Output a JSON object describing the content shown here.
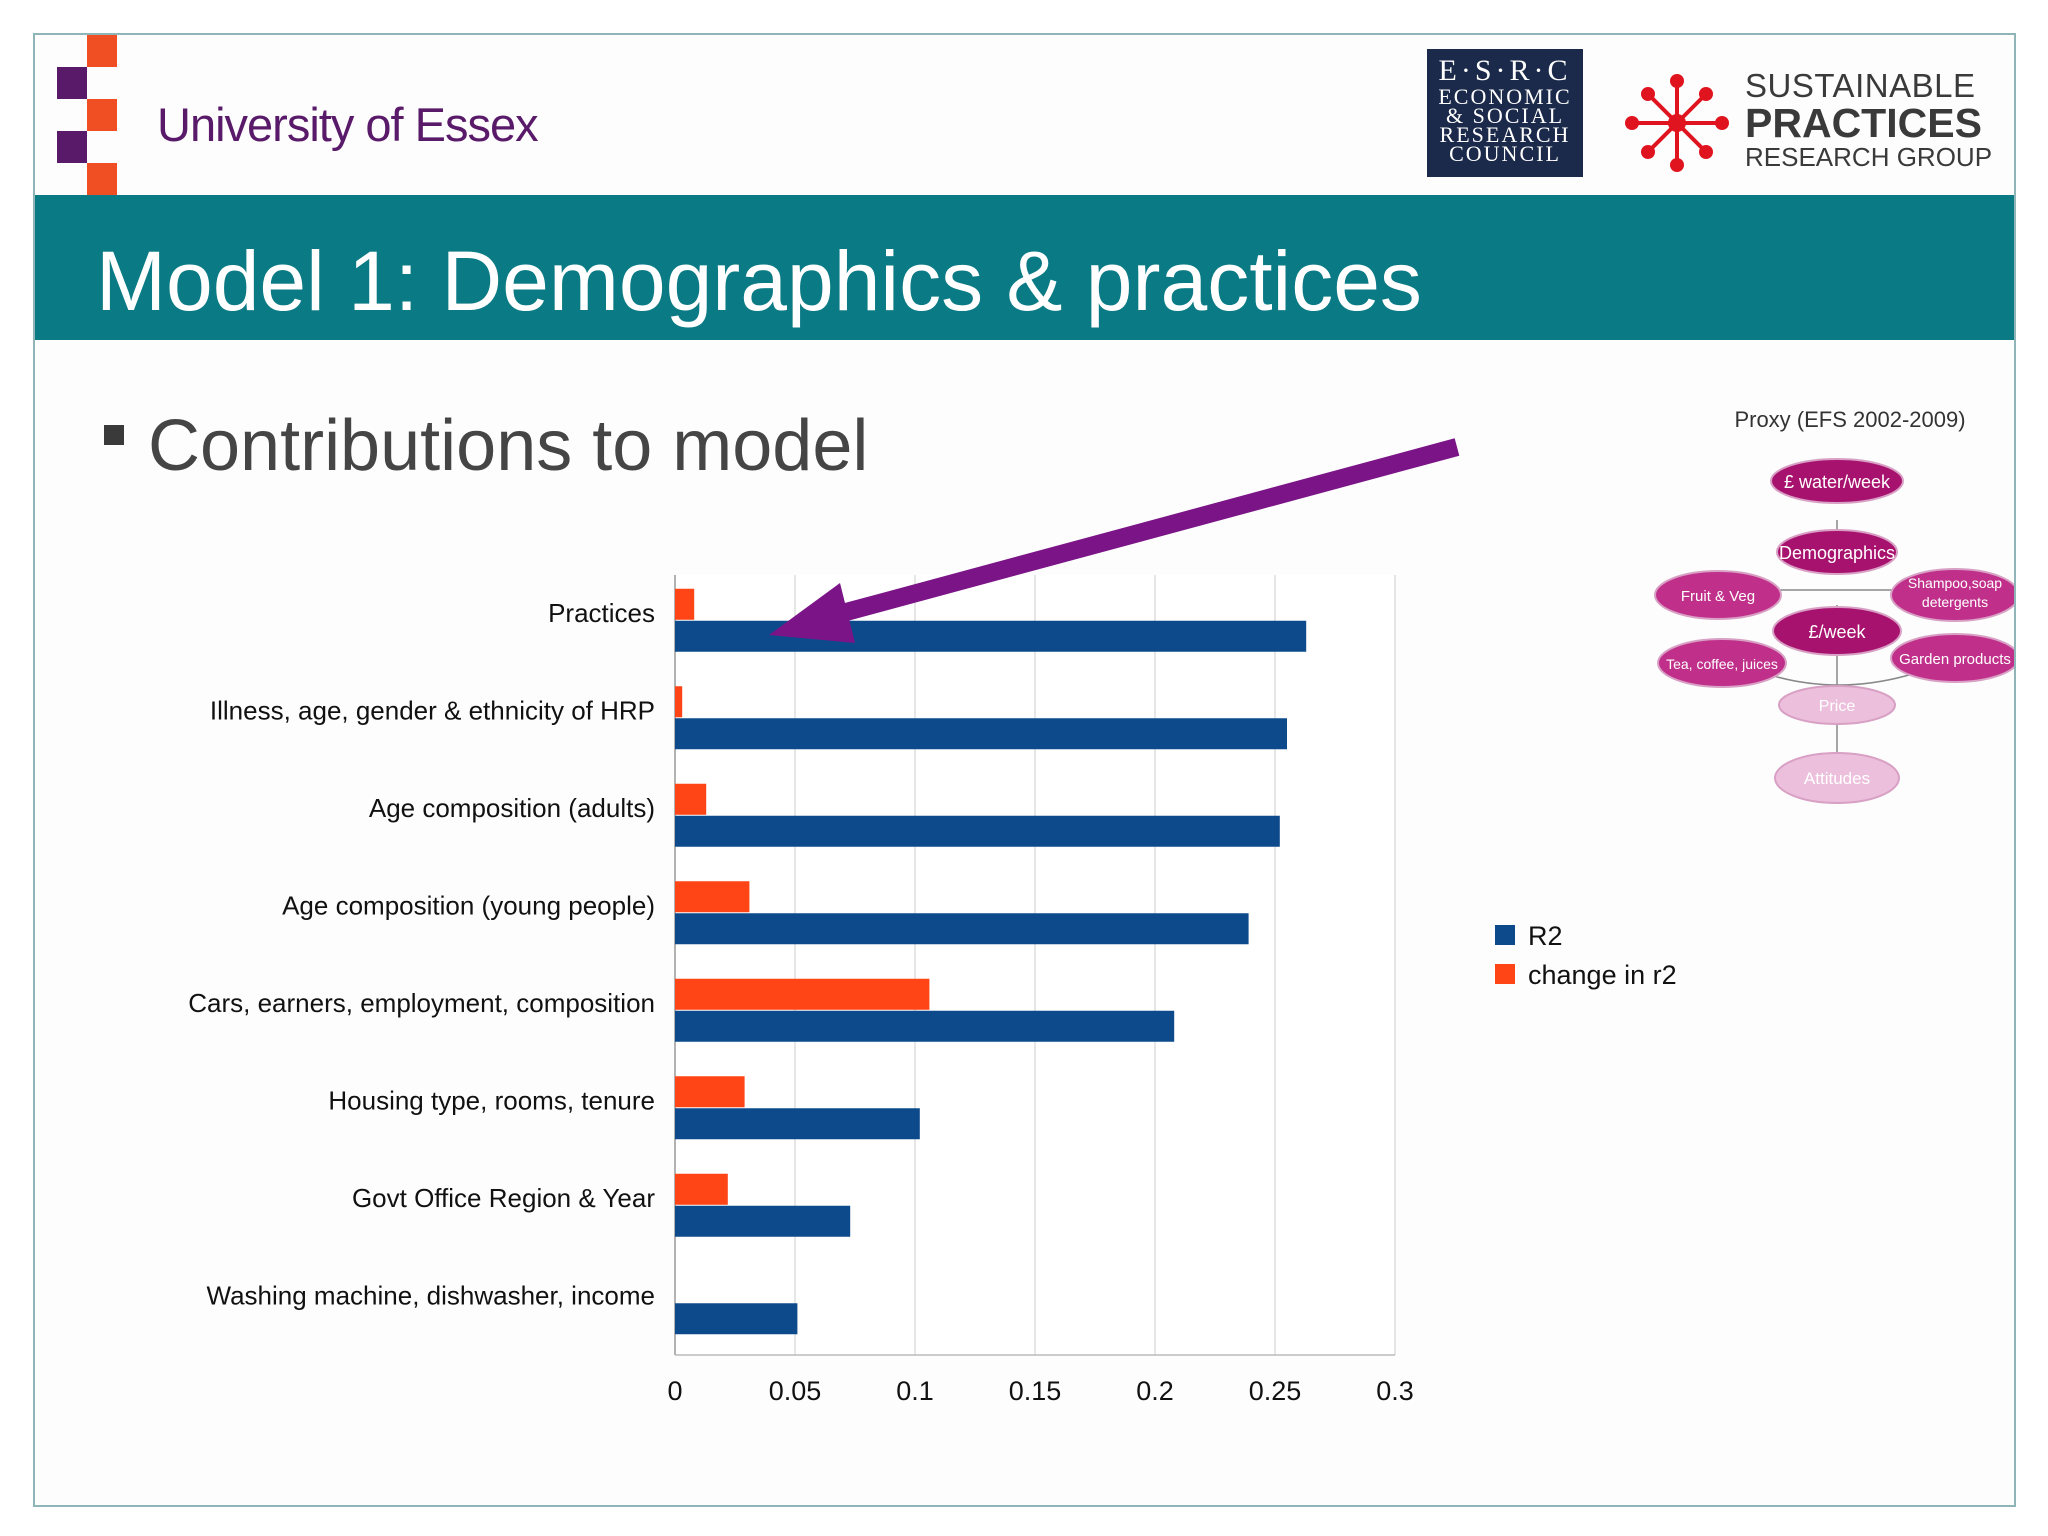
{
  "header": {
    "university": "University of Essex",
    "esrc_lines": [
      "E·S·R·C",
      "ECONOMIC",
      "& SOCIAL",
      "RESEARCH",
      "COUNCIL"
    ],
    "spr_lines": [
      "SUSTAINABLE",
      "PRACTICES",
      "RESEARCH GROUP"
    ]
  },
  "slide": {
    "title": "Model 1: Demographics & practices",
    "bullet": "Contributions to model"
  },
  "colors": {
    "teal": "#0a7a84",
    "r2": "#0d4a8c",
    "change": "#ff4415",
    "arrow": "#7b1487",
    "essex_purple": "#5a1a6a",
    "essex_red": "#f04e23"
  },
  "chart_data": {
    "type": "bar",
    "orientation": "horizontal",
    "categories": [
      "Practices",
      "Illness, age, gender & ethnicity of HRP",
      "Age composition (adults)",
      "Age composition (young people)",
      "Cars, earners, employment, composition",
      "Housing type, rooms, tenure",
      "Govt Office Region & Year",
      "Washing machine, dishwasher, income"
    ],
    "series": [
      {
        "name": "R2",
        "color": "#0d4a8c",
        "values": [
          0.263,
          0.255,
          0.252,
          0.239,
          0.208,
          0.102,
          0.073,
          0.051
        ]
      },
      {
        "name": "change in r2",
        "color": "#ff4415",
        "values": [
          0.008,
          0.003,
          0.013,
          0.031,
          0.106,
          0.029,
          0.022,
          0.0
        ]
      }
    ],
    "xlim": [
      0,
      0.3
    ],
    "xticks": [
      "0",
      "0.05",
      "0.1",
      "0.15",
      "0.2",
      "0.25",
      "0.3"
    ],
    "grid": true,
    "legend": "right"
  },
  "proxy_diagram": {
    "title": "Proxy (EFS 2002-2009)",
    "nodes": [
      "£ water/week",
      "Demographics",
      "Fruit & Veg",
      "Shampoo,soap detergents",
      "£/week",
      "Tea, coffee, juices",
      "Garden products",
      "Price",
      "Attitudes"
    ]
  }
}
